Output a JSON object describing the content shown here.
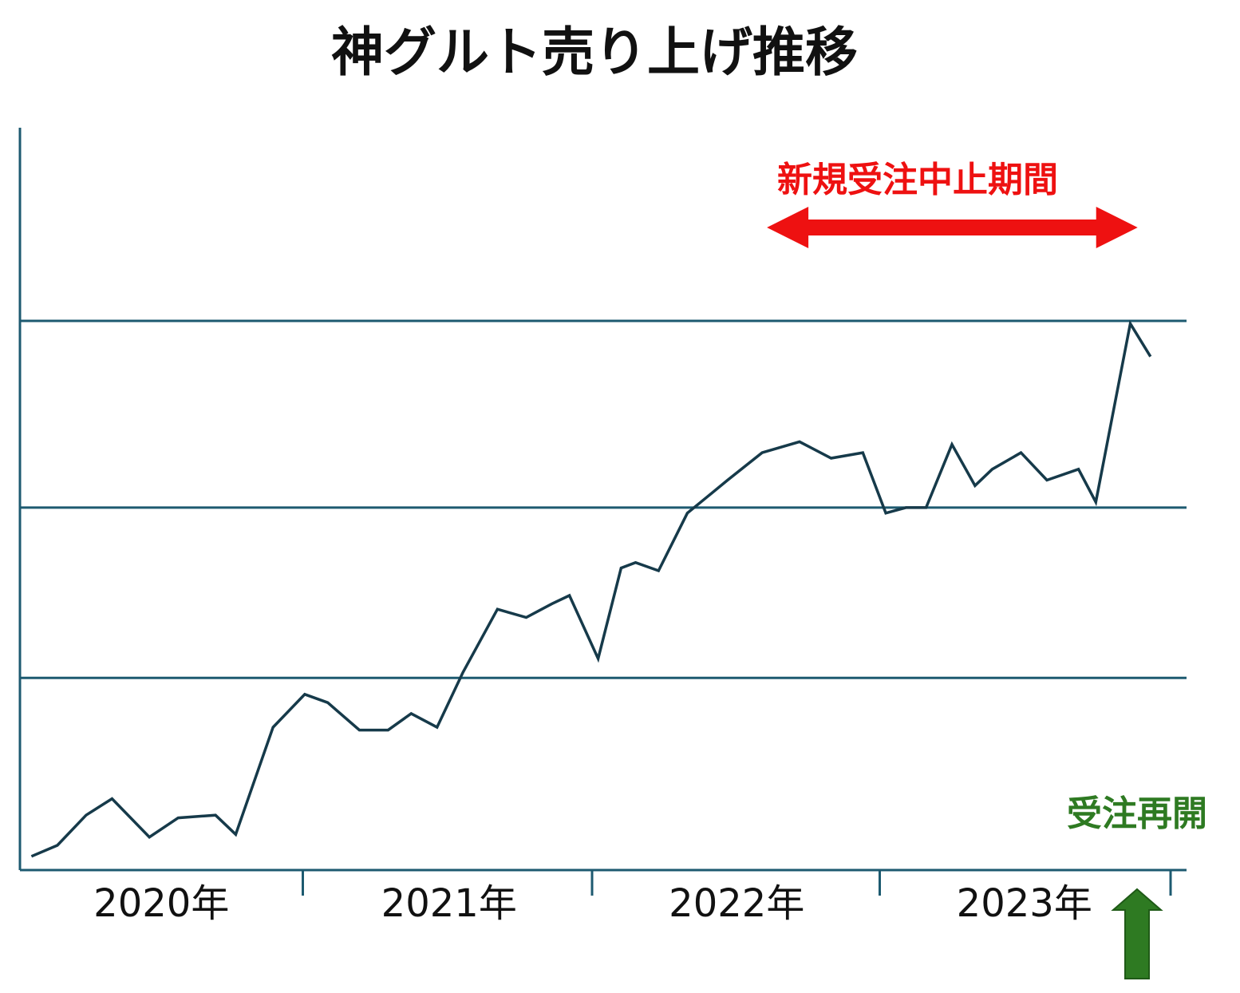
{
  "chart_data": {
    "type": "line",
    "title": "神グルト売り上げ推移",
    "xlabel": "",
    "ylabel": "",
    "x_categories": [
      "2020年",
      "2021年",
      "2022年",
      "2023年"
    ],
    "ylim": [
      0,
      100
    ],
    "grid_y": [
      35,
      66,
      100
    ],
    "grid": true,
    "legend": "none",
    "series": [
      {
        "color": "#163a4a",
        "points": [
          [
            2020.04,
            2.5
          ],
          [
            2020.13,
            4.5
          ],
          [
            2020.23,
            10
          ],
          [
            2020.32,
            13
          ],
          [
            2020.45,
            6
          ],
          [
            2020.55,
            9.5
          ],
          [
            2020.68,
            10
          ],
          [
            2020.75,
            6.5
          ],
          [
            2020.88,
            26
          ],
          [
            2020.99,
            32
          ],
          [
            2021.07,
            30.5
          ],
          [
            2021.18,
            25.5
          ],
          [
            2021.28,
            25.5
          ],
          [
            2021.36,
            28.5
          ],
          [
            2021.45,
            26
          ],
          [
            2021.54,
            36
          ],
          [
            2021.66,
            47.5
          ],
          [
            2021.76,
            46
          ],
          [
            2021.85,
            48.5
          ],
          [
            2021.91,
            50
          ],
          [
            2022.01,
            38.5
          ],
          [
            2022.09,
            55
          ],
          [
            2022.14,
            56
          ],
          [
            2022.22,
            54.5
          ],
          [
            2022.32,
            65
          ],
          [
            2022.39,
            68
          ],
          [
            2022.46,
            71
          ],
          [
            2022.58,
            76
          ],
          [
            2022.71,
            78
          ],
          [
            2022.82,
            75
          ],
          [
            2022.93,
            76
          ],
          [
            2023.01,
            65
          ],
          [
            2023.08,
            66
          ],
          [
            2023.15,
            66
          ],
          [
            2023.24,
            77.5
          ],
          [
            2023.32,
            70
          ],
          [
            2023.38,
            73
          ],
          [
            2023.48,
            76
          ],
          [
            2023.57,
            71
          ],
          [
            2023.68,
            73
          ],
          [
            2023.74,
            67
          ],
          [
            2023.86,
            99.5
          ],
          [
            2023.93,
            93.5
          ]
        ]
      }
    ],
    "annotations": {
      "halt_period_label": "新規受注中止期間",
      "halt_period_range": [
        2022.63,
        2023.83
      ],
      "halt_period_color": "#ee1111",
      "resume_label": "受注再開",
      "resume_x": 2023.83,
      "resume_color": "#2e7a22"
    },
    "axis_color": "#1d5a70",
    "line_color": "#163a4a"
  }
}
